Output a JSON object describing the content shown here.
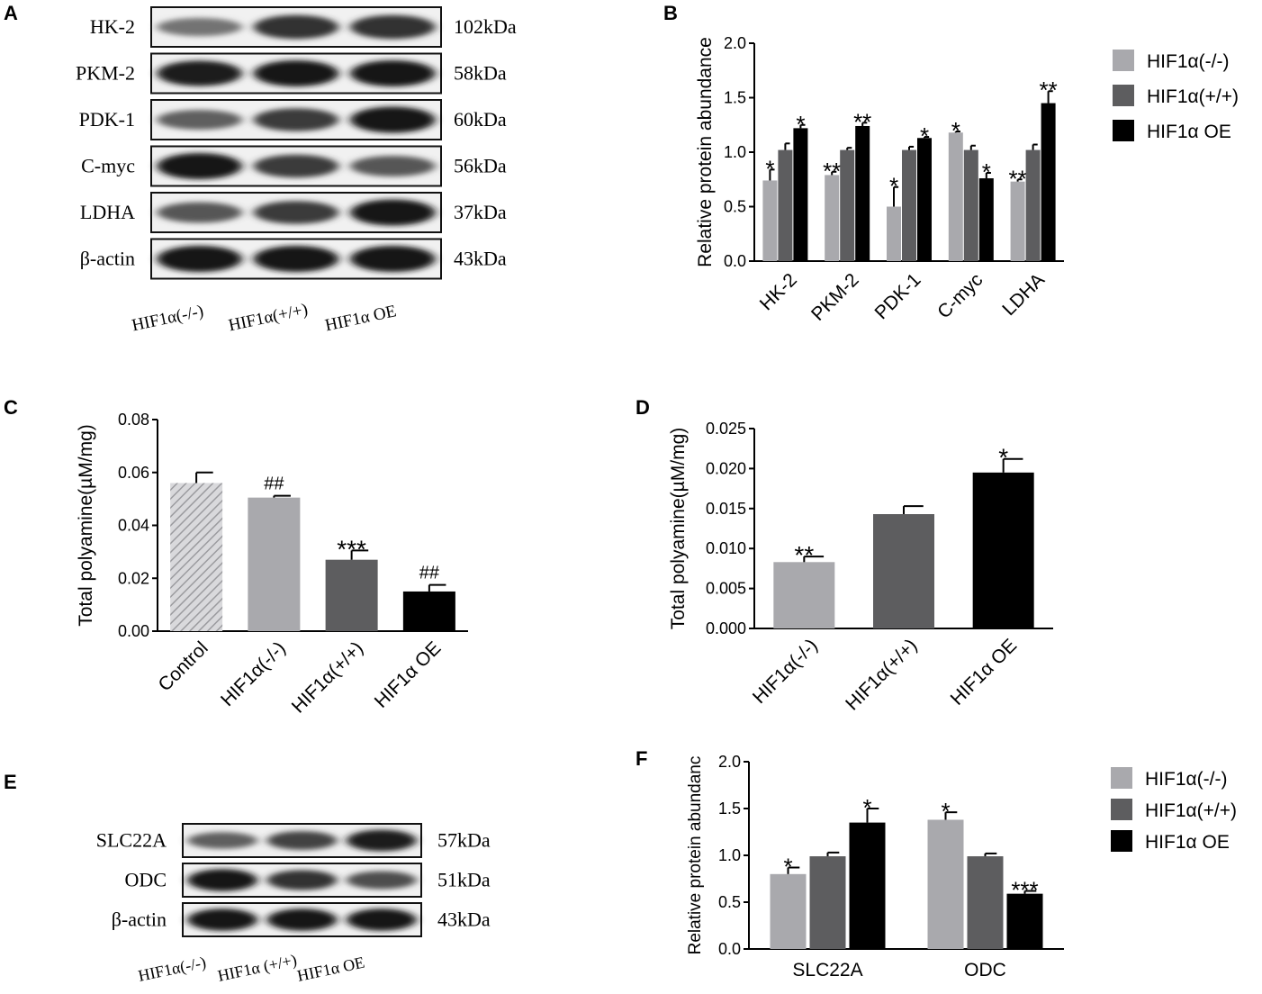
{
  "colors": {
    "light": "#a9a9ad",
    "mid": "#5d5d5f",
    "dark": "#000000",
    "hatch": "#9b9b9f"
  },
  "panel_labels": [
    "A",
    "B",
    "C",
    "D",
    "E",
    "F"
  ],
  "blot_A": {
    "rows": [
      {
        "label": "HK-2",
        "size": "102kDa",
        "intensity": [
          0.45,
          0.8,
          0.8
        ]
      },
      {
        "label": "PKM-2",
        "size": "58kDa",
        "intensity": [
          0.9,
          0.95,
          0.95
        ]
      },
      {
        "label": "PDK-1",
        "size": "60kDa",
        "intensity": [
          0.55,
          0.75,
          0.95
        ]
      },
      {
        "label": "C-myc",
        "size": "56kDa",
        "intensity": [
          0.95,
          0.75,
          0.6
        ]
      },
      {
        "label": "LDHA",
        "size": "37kDa",
        "intensity": [
          0.6,
          0.75,
          0.95
        ]
      },
      {
        "label": "β-actin",
        "size": "43kDa",
        "intensity": [
          0.95,
          0.95,
          0.95
        ]
      }
    ],
    "lanes": [
      "HIF1α(-/-)",
      "HIF1α(+/+)",
      "HIF1α OE"
    ]
  },
  "blot_E": {
    "rows": [
      {
        "label": "SLC22A",
        "size": "57kDa",
        "intensity": [
          0.55,
          0.7,
          0.9
        ]
      },
      {
        "label": "ODC",
        "size": "51kDa",
        "intensity": [
          0.95,
          0.8,
          0.65
        ]
      },
      {
        "label": "β-actin",
        "size": "43kDa",
        "intensity": [
          0.95,
          0.95,
          0.95
        ]
      }
    ],
    "lanes": [
      "HIF1α(-/-)",
      "HIF1α (+/+)",
      "HIF1α OE"
    ]
  },
  "chart_data": [
    {
      "id": "B",
      "type": "bar",
      "categories": [
        "HK-2",
        "PKM-2",
        "PDK-1",
        "C-myc",
        "LDHA"
      ],
      "series": [
        {
          "name": "HIF1α(-/-)",
          "color": "#a9a9ad",
          "values": [
            0.74,
            0.79,
            0.5,
            1.18,
            0.73
          ],
          "errors": [
            0.1,
            0.03,
            0.18,
            0.01,
            0.02
          ],
          "sig": [
            "*",
            "**",
            "*",
            "*",
            "**"
          ]
        },
        {
          "name": "HIF1α(+/+)",
          "color": "#5d5d5f",
          "values": [
            1.02,
            1.02,
            1.02,
            1.02,
            1.02
          ],
          "errors": [
            0.06,
            0.02,
            0.03,
            0.04,
            0.05
          ],
          "sig": [
            "",
            "",
            "",
            "",
            ""
          ]
        },
        {
          "name": "HIF1α OE",
          "color": "#000000",
          "values": [
            1.22,
            1.24,
            1.13,
            0.76,
            1.45
          ],
          "errors": [
            0.03,
            0.03,
            0.01,
            0.05,
            0.11
          ],
          "sig": [
            "*",
            "**",
            "*",
            "*",
            "**"
          ]
        }
      ],
      "ylabel": "Relative protein abundance",
      "ylim": [
        0,
        2.0
      ],
      "yticks": [
        "0.0",
        "0.5",
        "1.0",
        "1.5",
        "2.0"
      ],
      "legend": "right"
    },
    {
      "id": "C",
      "type": "bar",
      "categories": [
        "Control",
        "HIF1α(-/-)",
        "HIF1α(+/+)",
        "HIF1α OE"
      ],
      "values": [
        0.056,
        0.0505,
        0.027,
        0.015
      ],
      "errors": [
        0.004,
        0.0007,
        0.0035,
        0.0025
      ],
      "sig": [
        "",
        "##",
        "***",
        "##"
      ],
      "fills": [
        "hatch",
        "#a9a9ad",
        "#5d5d5f",
        "#000000"
      ],
      "ylabel": "Total polyamine(µM/mg)",
      "ylim": [
        0,
        0.08
      ],
      "yticks": [
        "0.00",
        "0.02",
        "0.04",
        "0.06",
        "0.08"
      ]
    },
    {
      "id": "D",
      "type": "bar",
      "categories": [
        "HIF1α(-/-)",
        "HIF1α(+/+)",
        "HIF1α OE"
      ],
      "values": [
        0.0083,
        0.0143,
        0.0195
      ],
      "errors": [
        0.0007,
        0.001,
        0.0017
      ],
      "sig": [
        "**",
        "",
        "*"
      ],
      "fills": [
        "#a9a9ad",
        "#5d5d5f",
        "#000000"
      ],
      "ylabel": "Total polyamine(µM/mg)",
      "ylim": [
        0,
        0.025
      ],
      "yticks": [
        "0.000",
        "0.005",
        "0.010",
        "0.015",
        "0.020",
        "0.025"
      ]
    },
    {
      "id": "F",
      "type": "bar",
      "categories": [
        "SLC22A",
        "ODC"
      ],
      "series": [
        {
          "name": "HIF1α(-/-)",
          "color": "#a9a9ad",
          "values": [
            0.8,
            1.38
          ],
          "errors": [
            0.07,
            0.08
          ],
          "sig": [
            "*",
            "*"
          ]
        },
        {
          "name": "HIF1α(+/+)",
          "color": "#5d5d5f",
          "values": [
            0.99,
            0.99
          ],
          "errors": [
            0.04,
            0.03
          ],
          "sig": [
            "",
            ""
          ]
        },
        {
          "name": "HIF1α OE",
          "color": "#000000",
          "values": [
            1.35,
            0.59
          ],
          "errors": [
            0.15,
            0.03
          ],
          "sig": [
            "*",
            "***"
          ]
        }
      ],
      "ylabel": "Relative protein abundanc",
      "ylim": [
        0,
        2.0
      ],
      "yticks": [
        "0.0",
        "0.5",
        "1.0",
        "1.5",
        "2.0"
      ],
      "legend": "right"
    }
  ]
}
